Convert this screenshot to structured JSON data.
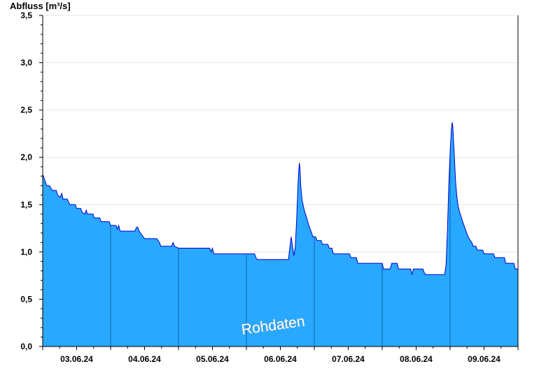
{
  "chart_data": {
    "type": "area",
    "ylabel": "Abfluss [m³/s]",
    "ylim": [
      0,
      3.5
    ],
    "y_ticks": [
      0,
      0.5,
      1,
      1.5,
      2,
      2.5,
      3,
      3.5
    ],
    "y_tick_labels": [
      "0,0",
      "0,5",
      "1,0",
      "1,5",
      "2,0",
      "2,5",
      "3,0",
      "3,5"
    ],
    "x_tick_labels": [
      "03.06.24",
      "04.06.24",
      "05.06.24",
      "06.06.24",
      "07.06.24",
      "08.06.24",
      "09.06.24"
    ],
    "x_range_days": [
      0,
      7
    ],
    "day_boundaries": [
      1,
      2,
      3,
      4,
      5,
      6
    ],
    "grid": true,
    "annotation": "Rohdaten",
    "colors": {
      "fill": "#29a8ff",
      "line": "#0000cc",
      "grid": "#e6e6e6",
      "axis": "#000000"
    },
    "points": [
      [
        0.0,
        1.82
      ],
      [
        0.02,
        1.78
      ],
      [
        0.04,
        1.74
      ],
      [
        0.06,
        1.7
      ],
      [
        0.1,
        1.7
      ],
      [
        0.14,
        1.65
      ],
      [
        0.2,
        1.65
      ],
      [
        0.22,
        1.6
      ],
      [
        0.26,
        1.58
      ],
      [
        0.28,
        1.62
      ],
      [
        0.3,
        1.56
      ],
      [
        0.36,
        1.56
      ],
      [
        0.4,
        1.5
      ],
      [
        0.48,
        1.5
      ],
      [
        0.5,
        1.46
      ],
      [
        0.56,
        1.46
      ],
      [
        0.58,
        1.42
      ],
      [
        0.62,
        1.4
      ],
      [
        0.64,
        1.44
      ],
      [
        0.66,
        1.4
      ],
      [
        0.74,
        1.4
      ],
      [
        0.76,
        1.36
      ],
      [
        0.84,
        1.36
      ],
      [
        0.86,
        1.32
      ],
      [
        0.98,
        1.32
      ],
      [
        1.0,
        1.28
      ],
      [
        1.08,
        1.28
      ],
      [
        1.1,
        1.24
      ],
      [
        1.12,
        1.28
      ],
      [
        1.14,
        1.22
      ],
      [
        1.3,
        1.22
      ],
      [
        1.36,
        1.22
      ],
      [
        1.38,
        1.26
      ],
      [
        1.4,
        1.26
      ],
      [
        1.42,
        1.22
      ],
      [
        1.46,
        1.18
      ],
      [
        1.5,
        1.14
      ],
      [
        1.68,
        1.14
      ],
      [
        1.72,
        1.1
      ],
      [
        1.74,
        1.06
      ],
      [
        1.9,
        1.06
      ],
      [
        1.92,
        1.1
      ],
      [
        1.94,
        1.06
      ],
      [
        2.0,
        1.04
      ],
      [
        2.46,
        1.04
      ],
      [
        2.48,
        1.0
      ],
      [
        2.5,
        1.04
      ],
      [
        2.52,
        0.98
      ],
      [
        3.0,
        0.98
      ],
      [
        3.12,
        0.98
      ],
      [
        3.14,
        0.94
      ],
      [
        3.16,
        0.92
      ],
      [
        3.62,
        0.92
      ],
      [
        3.64,
        1.05
      ],
      [
        3.66,
        1.16
      ],
      [
        3.68,
        1.05
      ],
      [
        3.7,
        0.96
      ],
      [
        3.72,
        1.05
      ],
      [
        3.74,
        1.35
      ],
      [
        3.76,
        1.7
      ],
      [
        3.77,
        1.85
      ],
      [
        3.78,
        1.94
      ],
      [
        3.79,
        1.88
      ],
      [
        3.8,
        1.7
      ],
      [
        3.82,
        1.55
      ],
      [
        3.84,
        1.48
      ],
      [
        3.86,
        1.42
      ],
      [
        3.88,
        1.38
      ],
      [
        3.9,
        1.33
      ],
      [
        3.92,
        1.28
      ],
      [
        3.94,
        1.24
      ],
      [
        3.96,
        1.2
      ],
      [
        3.98,
        1.16
      ],
      [
        4.02,
        1.16
      ],
      [
        4.04,
        1.12
      ],
      [
        4.1,
        1.12
      ],
      [
        4.12,
        1.08
      ],
      [
        4.2,
        1.08
      ],
      [
        4.22,
        1.04
      ],
      [
        4.26,
        1.04
      ],
      [
        4.28,
        0.98
      ],
      [
        4.52,
        0.98
      ],
      [
        4.54,
        0.94
      ],
      [
        4.62,
        0.94
      ],
      [
        4.64,
        0.88
      ],
      [
        5.0,
        0.88
      ],
      [
        5.02,
        0.82
      ],
      [
        5.12,
        0.82
      ],
      [
        5.14,
        0.88
      ],
      [
        5.22,
        0.88
      ],
      [
        5.24,
        0.82
      ],
      [
        5.42,
        0.82
      ],
      [
        5.44,
        0.76
      ],
      [
        5.46,
        0.82
      ],
      [
        5.6,
        0.82
      ],
      [
        5.62,
        0.78
      ],
      [
        5.64,
        0.76
      ],
      [
        5.92,
        0.76
      ],
      [
        5.94,
        0.86
      ],
      [
        5.96,
        1.2
      ],
      [
        5.98,
        1.7
      ],
      [
        6.0,
        2.05
      ],
      [
        6.02,
        2.3
      ],
      [
        6.03,
        2.37
      ],
      [
        6.04,
        2.32
      ],
      [
        6.06,
        2.05
      ],
      [
        6.08,
        1.75
      ],
      [
        6.1,
        1.58
      ],
      [
        6.12,
        1.48
      ],
      [
        6.14,
        1.42
      ],
      [
        6.16,
        1.38
      ],
      [
        6.18,
        1.33
      ],
      [
        6.2,
        1.29
      ],
      [
        6.22,
        1.25
      ],
      [
        6.24,
        1.21
      ],
      [
        6.26,
        1.17
      ],
      [
        6.28,
        1.14
      ],
      [
        6.32,
        1.1
      ],
      [
        6.34,
        1.06
      ],
      [
        6.38,
        1.06
      ],
      [
        6.4,
        1.02
      ],
      [
        6.48,
        1.02
      ],
      [
        6.5,
        0.98
      ],
      [
        6.64,
        0.98
      ],
      [
        6.66,
        0.94
      ],
      [
        6.8,
        0.94
      ],
      [
        6.82,
        0.88
      ],
      [
        6.94,
        0.88
      ],
      [
        6.96,
        0.82
      ],
      [
        7.0,
        0.82
      ]
    ]
  }
}
